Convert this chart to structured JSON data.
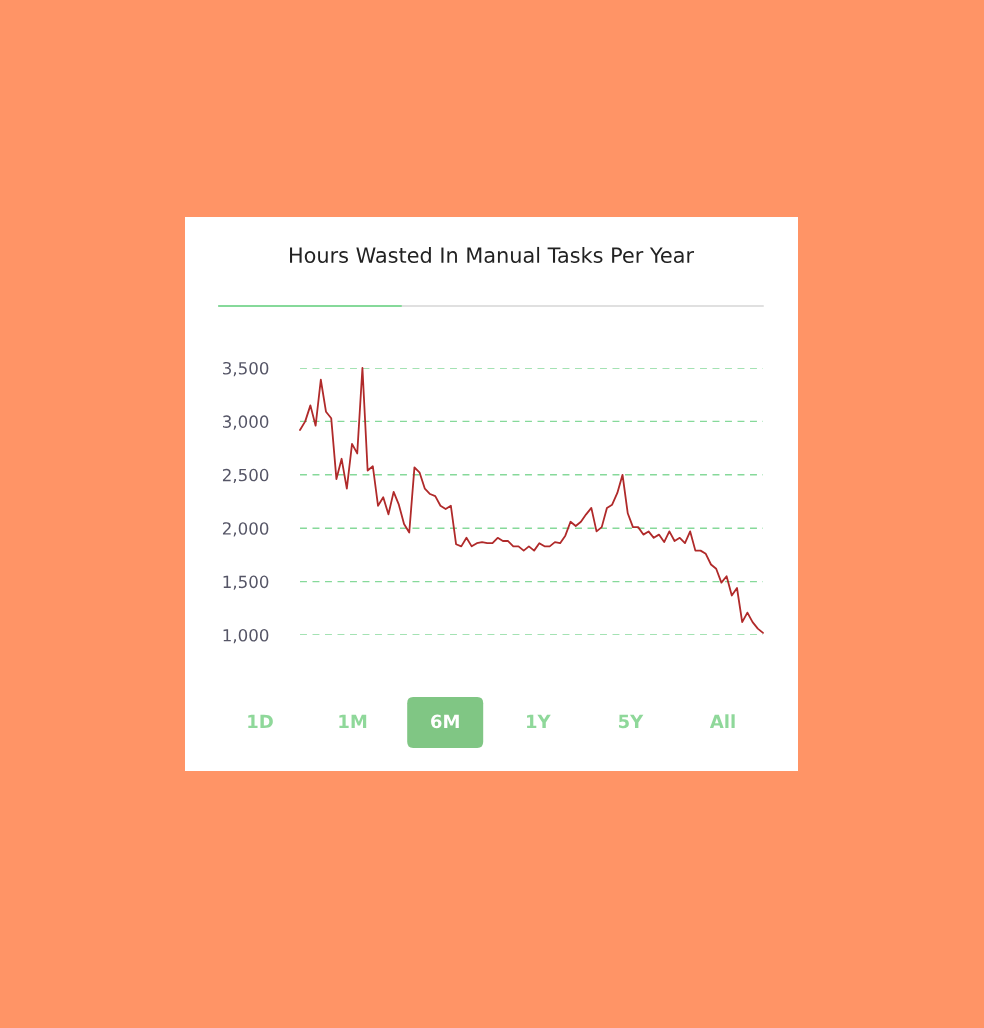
{
  "chart_data": {
    "type": "line",
    "title": "Hours Wasted In Manual Tasks Per Year",
    "categories": [
      null,
      null,
      null,
      null,
      null,
      null,
      null,
      null,
      null,
      null,
      null,
      null,
      null,
      null,
      null,
      null,
      null,
      null,
      null,
      null,
      null,
      null,
      null,
      null,
      null,
      null,
      null,
      null,
      null,
      null,
      null,
      null,
      null,
      null,
      null,
      null,
      null,
      null,
      null,
      null,
      null,
      null,
      null,
      null,
      null,
      null,
      null,
      null,
      null,
      null,
      null,
      null,
      null,
      null,
      null,
      null,
      null,
      null,
      null,
      null,
      null,
      null,
      null,
      null,
      null,
      null,
      null,
      null,
      null,
      null,
      null,
      null,
      null,
      null,
      null,
      null,
      null,
      null,
      null,
      null,
      null,
      null,
      null,
      null,
      null,
      null,
      null,
      null,
      null,
      null
    ],
    "series": [
      {
        "color": "#b02a2a",
        "values": [
          2920,
          3000,
          3150,
          2960,
          3390,
          3090,
          3030,
          2460,
          2650,
          2370,
          2790,
          2700,
          3500,
          2540,
          2580,
          2210,
          2290,
          2130,
          2340,
          2220,
          2040,
          1960,
          2570,
          2520,
          2370,
          2320,
          2300,
          2210,
          2180,
          2210,
          1850,
          1830,
          1910,
          1830,
          1860,
          1870,
          1860,
          1860,
          1910,
          1880,
          1880,
          1830,
          1830,
          1790,
          1830,
          1790,
          1860,
          1830,
          1830,
          1870,
          1860,
          1930,
          2060,
          2020,
          2060,
          2130,
          2190,
          1970,
          2010,
          2190,
          2220,
          2330,
          2500,
          2140,
          2010,
          2010,
          1940,
          1970,
          1910,
          1940,
          1870,
          1970,
          1880,
          1910,
          1860,
          1970,
          1790,
          1790,
          1760,
          1660,
          1620,
          1490,
          1550,
          1370,
          1440,
          1120,
          1210,
          1120,
          1060,
          1020
        ]
      }
    ],
    "ylim": [
      1000,
      3500
    ],
    "yticks": [
      {
        "value": 1000,
        "label": "1,000"
      },
      {
        "value": 1500,
        "label": "1,500"
      },
      {
        "value": 2000,
        "label": "2,000"
      },
      {
        "value": 2500,
        "label": "2,500"
      },
      {
        "value": 3000,
        "label": "3,000"
      },
      {
        "value": 3500,
        "label": "3,500"
      }
    ],
    "grid": "y",
    "line_style": "solid",
    "annotations": [
      "1D",
      "1M",
      "6M",
      "1Y",
      "5Y",
      "All"
    ]
  }
}
